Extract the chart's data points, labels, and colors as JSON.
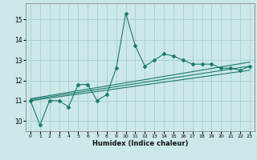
{
  "title": "",
  "xlabel": "Humidex (Indice chaleur)",
  "x": [
    0,
    1,
    2,
    3,
    4,
    5,
    6,
    7,
    8,
    9,
    10,
    11,
    12,
    13,
    14,
    15,
    16,
    17,
    18,
    19,
    20,
    21,
    22,
    23
  ],
  "y_main": [
    11.0,
    9.8,
    11.0,
    11.0,
    10.7,
    11.8,
    11.8,
    11.0,
    11.3,
    12.6,
    15.3,
    13.7,
    12.7,
    13.0,
    13.3,
    13.2,
    13.0,
    12.8,
    12.8,
    12.8,
    12.6,
    12.6,
    12.5,
    12.7
  ],
  "line_color": "#1a7a6e",
  "background_color": "#cce8e8",
  "grid_color": "#a0cccc",
  "ylim": [
    9.5,
    15.8
  ],
  "yticks": [
    10,
    11,
    12,
    13,
    14,
    15
  ],
  "xticks": [
    0,
    1,
    2,
    3,
    4,
    5,
    6,
    7,
    8,
    9,
    10,
    11,
    12,
    13,
    14,
    15,
    16,
    17,
    18,
    19,
    20,
    21,
    22,
    23
  ],
  "trend_lines": [
    [
      0.0,
      23.0,
      11.0,
      12.5
    ],
    [
      0.0,
      23.0,
      11.05,
      12.7
    ],
    [
      0.0,
      23.0,
      11.1,
      12.9
    ]
  ]
}
